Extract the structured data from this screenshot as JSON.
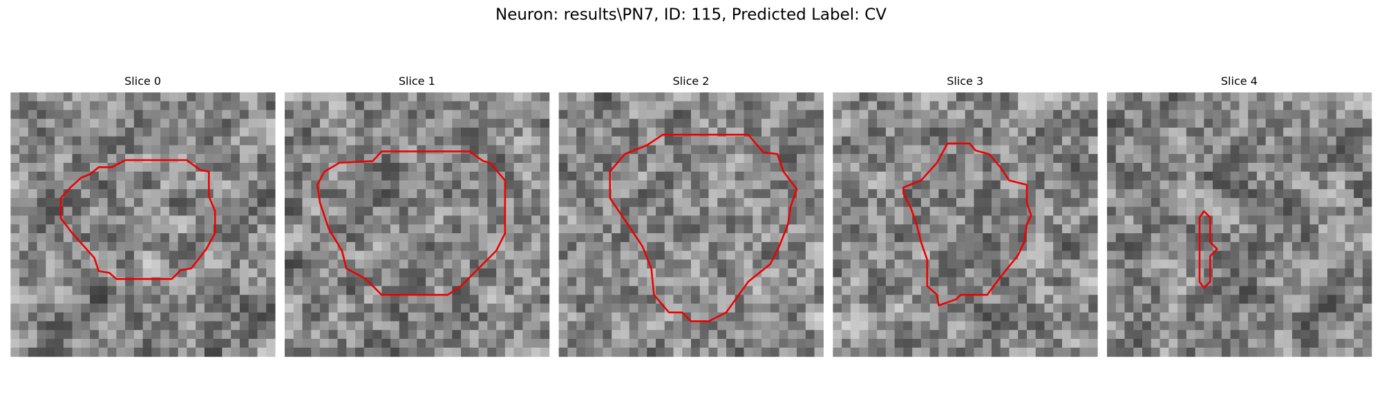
{
  "title": "Neuron: results\\PN7, ID: 115, Predicted Label: CV",
  "panels": [
    {
      "title": "Slice 0"
    },
    {
      "title": "Slice 1"
    },
    {
      "title": "Slice 2"
    },
    {
      "title": "Slice 3"
    },
    {
      "title": "Slice 4"
    }
  ]
}
